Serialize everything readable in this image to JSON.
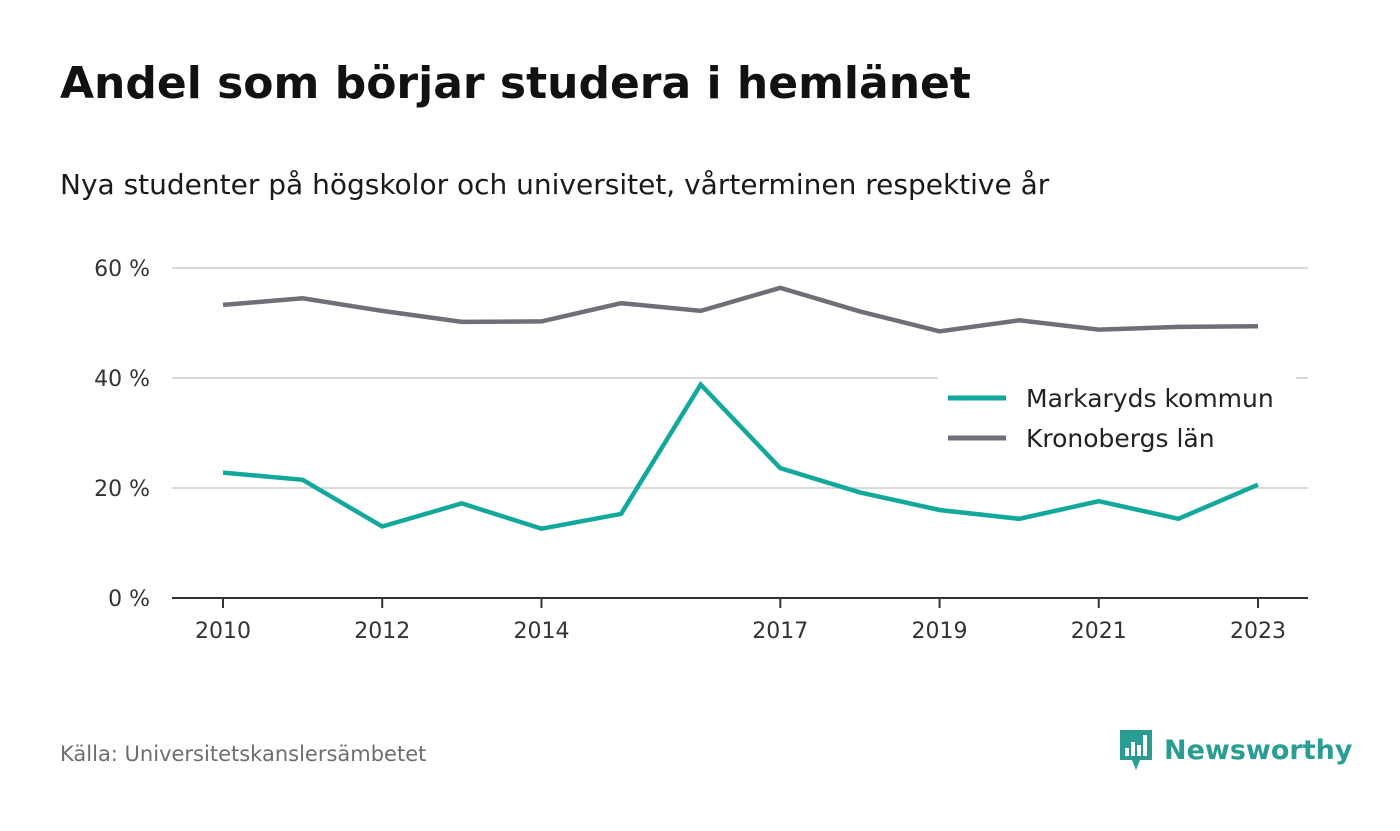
{
  "chart_data": {
    "type": "line",
    "title": "Andel som börjar studera i hemlänet",
    "subtitle": "Nya studenter på högskolor och universitet, vårterminen respektive år",
    "source": "Källa: Universitetskanslersämbetet",
    "brand": "Newsworthy",
    "x": [
      2010,
      2011,
      2012,
      2013,
      2014,
      2015,
      2016,
      2017,
      2018,
      2019,
      2020,
      2021,
      2022,
      2023
    ],
    "x_ticks": [
      2010,
      2012,
      2014,
      2017,
      2019,
      2021,
      2023
    ],
    "x_tick_labels": [
      "2010",
      "2012",
      "2014",
      "2017",
      "2019",
      "2021",
      "2023"
    ],
    "y_ticks": [
      0,
      20,
      40,
      60
    ],
    "y_tick_labels": [
      "0 %",
      "20 %",
      "40 %",
      "60 %"
    ],
    "ylim": [
      0,
      60
    ],
    "grid": true,
    "legend_position": "right",
    "series": [
      {
        "name": "Markaryds kommun",
        "color": "#12a89b",
        "values": [
          22.8,
          21.5,
          13.0,
          17.2,
          12.6,
          15.3,
          38.8,
          23.6,
          19.2,
          16.0,
          14.4,
          17.6,
          14.4,
          20.6
        ]
      },
      {
        "name": "Kronobergs län",
        "color": "#706f77",
        "values": [
          53.3,
          54.5,
          52.2,
          50.2,
          50.3,
          53.6,
          52.2,
          56.4,
          52.1,
          48.5,
          50.5,
          48.8,
          49.3,
          49.4
        ]
      }
    ]
  }
}
